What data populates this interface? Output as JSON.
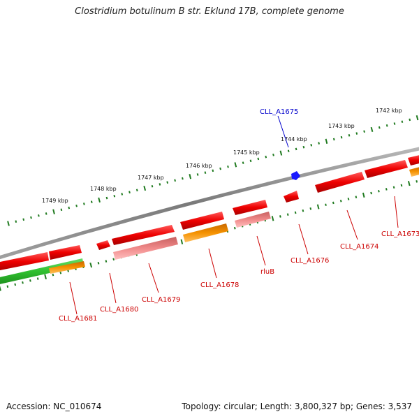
{
  "title": "Clostridium botulinum B str. Eklund 17B, complete genome",
  "footer": {
    "accession": "Accession: NC_010674",
    "summary": "Topology: circular; Length: 3,800,327 bp; Genes: 3,537"
  },
  "colors": {
    "backbone": "#8c8c8c",
    "tick": "#1f7a1f",
    "gene_red": "#e11111",
    "gene_pink": "#e87d7d",
    "gene_orange": "#f08c00",
    "gene_green": "#33c233",
    "gene_blue": "#1a1aff",
    "label_red": "#cc0000",
    "label_blue": "#0000cc"
  },
  "kbp_labels": [
    "1749 kbp",
    "1748 kbp",
    "1747 kbp",
    "1746 kbp",
    "1745 kbp",
    "1744 kbp",
    "1743 kbp",
    "1742 kbp"
  ],
  "gene_labels": [
    {
      "key": "a1675",
      "text": "CLL_A1675",
      "color": "blue"
    },
    {
      "key": "a1673",
      "text": "CLL_A1673",
      "color": "red"
    },
    {
      "key": "a1674",
      "text": "CLL_A1674",
      "color": "red"
    },
    {
      "key": "a1676",
      "text": "CLL_A1676",
      "color": "red"
    },
    {
      "key": "rlub",
      "text": "rluB",
      "color": "red"
    },
    {
      "key": "a1678",
      "text": "CLL_A1678",
      "color": "red"
    },
    {
      "key": "a1679",
      "text": "CLL_A1679",
      "color": "red"
    },
    {
      "key": "a1680",
      "text": "CLL_A1680",
      "color": "red"
    },
    {
      "key": "a1681",
      "text": "CLL_A1681",
      "color": "red"
    }
  ]
}
